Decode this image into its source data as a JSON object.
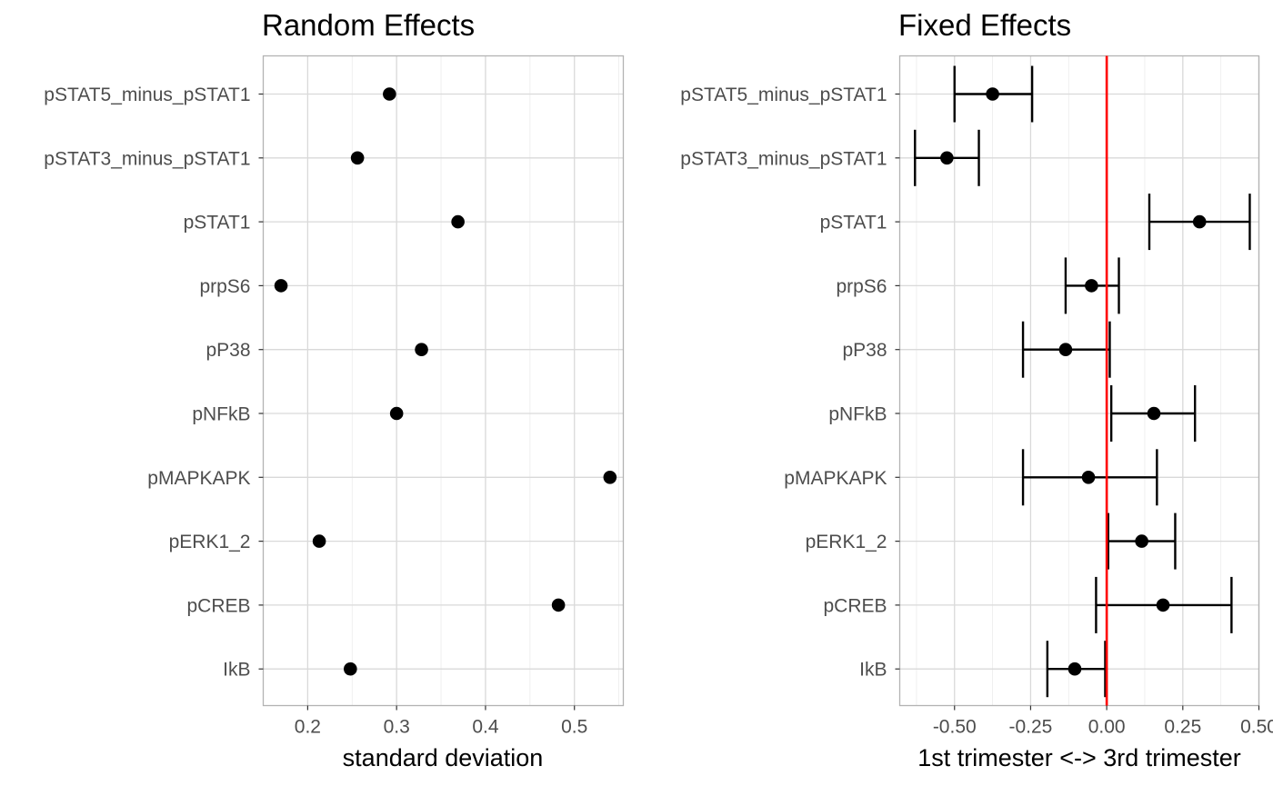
{
  "chart_data": [
    {
      "type": "scatter",
      "title": "Random Effects",
      "xlabel": "standard deviation",
      "ylabel": "",
      "categories": [
        "pSTAT5_minus_pSTAT1",
        "pSTAT3_minus_pSTAT1",
        "pSTAT1",
        "prpS6",
        "pP38",
        "pNFkB",
        "pMAPKAPK",
        "pERK1_2",
        "pCREB",
        "IkB"
      ],
      "values": [
        0.292,
        0.256,
        0.369,
        0.17,
        0.328,
        0.3,
        0.54,
        0.213,
        0.482,
        0.248
      ],
      "xlim": [
        0.15,
        0.555
      ],
      "xticks": [
        0.2,
        0.3,
        0.4,
        0.5
      ],
      "xtick_labels": [
        "0.2",
        "0.3",
        "0.4",
        "0.5"
      ],
      "grid": true,
      "colors": {
        "point": "#000000"
      }
    },
    {
      "type": "scatter",
      "title": "Fixed Effects",
      "xlabel": "1st trimester <-> 3rd trimester",
      "ylabel": "",
      "categories": [
        "pSTAT5_minus_pSTAT1",
        "pSTAT3_minus_pSTAT1",
        "pSTAT1",
        "prpS6",
        "pP38",
        "pNFkB",
        "pMAPKAPK",
        "pERK1_2",
        "pCREB",
        "IkB"
      ],
      "values": [
        -0.375,
        -0.525,
        0.305,
        -0.05,
        -0.135,
        0.155,
        -0.06,
        0.115,
        0.185,
        -0.105
      ],
      "lower": [
        -0.5,
        -0.63,
        0.14,
        -0.135,
        -0.275,
        0.015,
        -0.275,
        0.005,
        -0.035,
        -0.195
      ],
      "upper": [
        -0.245,
        -0.42,
        0.47,
        0.04,
        0.01,
        0.29,
        0.165,
        0.225,
        0.41,
        -0.005
      ],
      "reference_line": {
        "x": 0.0,
        "color": "#ff0000"
      },
      "xlim": [
        -0.68,
        0.5
      ],
      "xticks": [
        -0.5,
        -0.25,
        0.0,
        0.25,
        0.5
      ],
      "xtick_labels": [
        "-0.50",
        "-0.25",
        "0.00",
        "0.25",
        "0.50"
      ],
      "grid": true,
      "colors": {
        "point": "#000000",
        "errorbar": "#000000"
      }
    }
  ]
}
